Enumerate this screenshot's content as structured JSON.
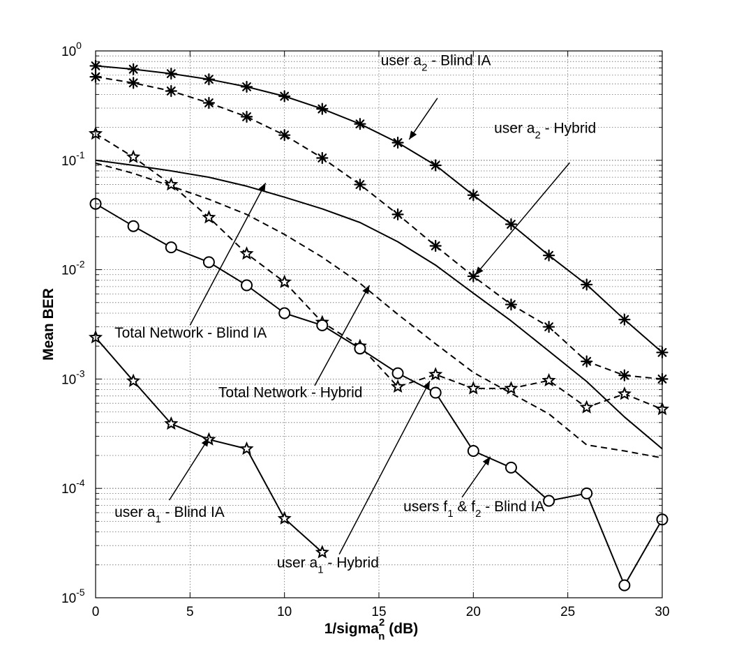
{
  "chart_data": {
    "type": "line",
    "title": "",
    "xlabel": {
      "main": "1/sigma",
      "sup": "2",
      "sub": "n",
      "tail": " (dB)"
    },
    "ylabel": "Mean BER",
    "xlim": [
      0,
      30
    ],
    "ylim": [
      1e-05,
      1
    ],
    "yscale": "log",
    "grid": true,
    "x_ticks": [
      "0",
      "5",
      "10",
      "15",
      "20",
      "25",
      "30"
    ],
    "y_ticks": [
      {
        "base": "10",
        "exp": "-5",
        "value": 1e-05
      },
      {
        "base": "10",
        "exp": "-4",
        "value": 0.0001
      },
      {
        "base": "10",
        "exp": "-3",
        "value": 0.001
      },
      {
        "base": "10",
        "exp": "-2",
        "value": 0.01
      },
      {
        "base": "10",
        "exp": "-1",
        "value": 0.1
      },
      {
        "base": "10",
        "exp": "0",
        "value": 1
      }
    ],
    "series": [
      {
        "name": "user a2 - Blind IA",
        "style": "solid",
        "marker": "asterisk",
        "x": [
          0,
          2,
          4,
          6,
          8,
          10,
          12,
          14,
          16,
          18,
          20,
          22,
          24,
          26,
          28,
          30
        ],
        "y": [
          0.73,
          0.68,
          0.62,
          0.55,
          0.47,
          0.385,
          0.295,
          0.215,
          0.145,
          0.09,
          0.048,
          0.026,
          0.0135,
          0.0073,
          0.0035,
          0.00175
        ]
      },
      {
        "name": "user a2 - Hybrid",
        "style": "dashed",
        "marker": "asterisk",
        "x": [
          0,
          2,
          4,
          6,
          8,
          10,
          12,
          14,
          16,
          18,
          20,
          22,
          24,
          26,
          28,
          30
        ],
        "y": [
          0.58,
          0.51,
          0.43,
          0.335,
          0.25,
          0.17,
          0.105,
          0.06,
          0.032,
          0.0165,
          0.0087,
          0.0048,
          0.003,
          0.00145,
          0.00108,
          0.001
        ]
      },
      {
        "name": "Total Network - Blind IA",
        "style": "solid",
        "marker": "none",
        "x": [
          0,
          2,
          4,
          6,
          8,
          10,
          12,
          14,
          16,
          18,
          20,
          22,
          24,
          26,
          28,
          30
        ],
        "y": [
          0.1,
          0.09,
          0.08,
          0.07,
          0.058,
          0.046,
          0.036,
          0.027,
          0.018,
          0.011,
          0.0061,
          0.0034,
          0.0018,
          0.00095,
          0.00045,
          0.00023
        ]
      },
      {
        "name": "Total Network - Hybrid",
        "style": "dashed",
        "marker": "none",
        "x": [
          0,
          2,
          4,
          6,
          8,
          10,
          12,
          14,
          16,
          18,
          20,
          22,
          24,
          26,
          28,
          30
        ],
        "y": [
          0.094,
          0.076,
          0.058,
          0.044,
          0.032,
          0.021,
          0.013,
          0.0075,
          0.0039,
          0.0021,
          0.00115,
          0.00074,
          0.00048,
          0.00025,
          0.00022,
          0.00019
        ]
      },
      {
        "name": "user a1 - Hybrid",
        "style": "dashed",
        "marker": "star",
        "x": [
          0,
          2,
          4,
          6,
          8,
          10,
          12,
          14,
          16,
          18,
          20,
          22,
          24,
          26,
          28,
          30
        ],
        "y": [
          0.175,
          0.107,
          0.06,
          0.03,
          0.014,
          0.0077,
          0.0033,
          0.002,
          0.00085,
          0.0011,
          0.00082,
          0.00082,
          0.00097,
          0.00055,
          0.00073,
          0.00053
        ]
      },
      {
        "name": "users f1 & f2 - Blind IA",
        "style": "solid",
        "marker": "circle",
        "x": [
          0,
          2,
          4,
          6,
          8,
          10,
          12,
          14,
          16,
          18,
          20,
          22,
          24,
          26,
          28,
          30
        ],
        "y": [
          0.04,
          0.025,
          0.016,
          0.0117,
          0.0072,
          0.004,
          0.0031,
          0.0019,
          0.00113,
          0.00075,
          0.00022,
          0.000155,
          7.7e-05,
          9e-05,
          1.3e-05,
          5.2e-05
        ]
      },
      {
        "name": "user a1 - Blind IA",
        "style": "solid",
        "marker": "star",
        "x": [
          0,
          2,
          4,
          6,
          8,
          10,
          12
        ],
        "y": [
          0.0024,
          0.00096,
          0.00039,
          0.00028,
          0.00023,
          5.3e-05,
          2.6e-05
        ]
      }
    ],
    "annotations": [
      {
        "id": "a2_blind",
        "main": "user a",
        "sub": "2",
        "tail": " - Blind IA",
        "text_x": 15.1,
        "text_y": 0.74,
        "arrow_from": [
          18.1,
          0.37
        ],
        "arrow_to": [
          16.6,
          0.155
        ]
      },
      {
        "id": "a2_hybrid",
        "main": "user a",
        "sub": "2",
        "tail": " - Hybrid",
        "text_x": 21.1,
        "text_y": 0.178,
        "arrow_from": [
          25.1,
          0.095
        ],
        "arrow_to": [
          20.1,
          0.0089
        ]
      },
      {
        "id": "total_blind",
        "main": "Total Network - Blind IA",
        "sub": "",
        "tail": "",
        "text_x": 1.0,
        "text_y": 0.0024,
        "arrow_from": [
          5.0,
          0.0031
        ],
        "arrow_to": [
          9.0,
          0.062
        ]
      },
      {
        "id": "total_hybrid",
        "main": "Total Network - Hybrid",
        "sub": "",
        "tail": "",
        "text_x": 6.5,
        "text_y": 0.00068,
        "arrow_from": [
          11.6,
          0.00087
        ],
        "arrow_to": [
          14.5,
          0.0072
        ]
      },
      {
        "id": "a1_blind",
        "main": "user a",
        "sub": "1",
        "tail": " - Blind IA",
        "text_x": 1.0,
        "text_y": 5.5e-05,
        "arrow_from": [
          3.9,
          7.8e-05
        ],
        "arrow_to": [
          6.0,
          0.00029
        ]
      },
      {
        "id": "a1_hybrid",
        "main": "user a",
        "sub": "1",
        "tail": " - Hybrid",
        "text_x": 9.6,
        "text_y": 1.9e-05,
        "arrow_from": [
          12.9,
          2.5e-05
        ],
        "arrow_to": [
          17.7,
          0.00096
        ]
      },
      {
        "id": "f_blind",
        "main": "users f",
        "sub": "1",
        "tail": " & f",
        "sub2": "2",
        "tail2": " - Blind IA",
        "text_x": 16.3,
        "text_y": 6.2e-05,
        "arrow_from": [
          19.4,
          8.3e-05
        ],
        "arrow_to": [
          20.9,
          0.000195
        ]
      }
    ]
  }
}
